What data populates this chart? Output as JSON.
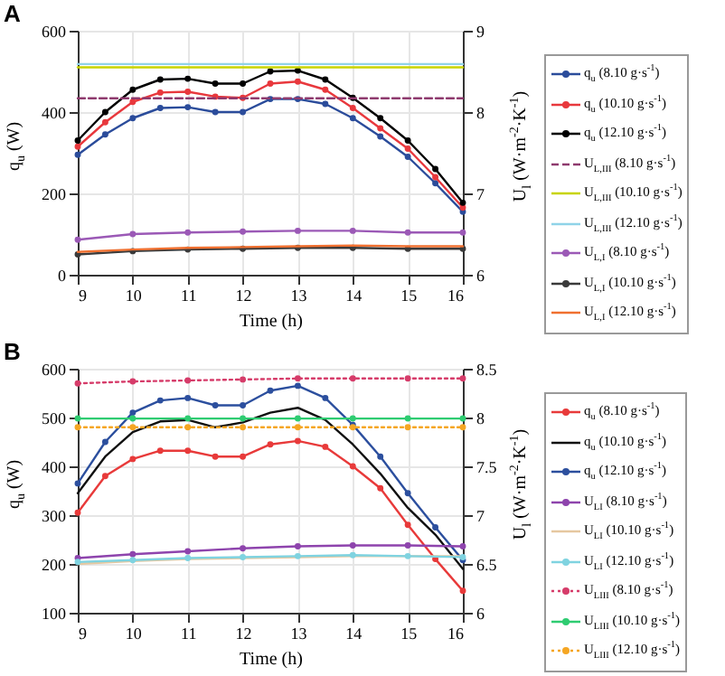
{
  "chart_data": [
    {
      "type": "line",
      "title": "A",
      "xlabel": "Time (h)",
      "ylabel": "q$_{u}$ (W)",
      "y2label": "U$_{l}$ (W·m$^{-2}$·K$^{-1}$)",
      "x": [
        9,
        9.5,
        10,
        10.5,
        11,
        11.5,
        12,
        12.5,
        13,
        13.5,
        14,
        14.5,
        15,
        15.5,
        16
      ],
      "xlim": [
        9,
        16
      ],
      "xticks": [
        9,
        10,
        11,
        12,
        13,
        14,
        15,
        16
      ],
      "ylim": [
        0,
        600
      ],
      "yticks": [
        0,
        200,
        400,
        600
      ],
      "y2lim": [
        6,
        9
      ],
      "y2ticks": [
        6,
        7,
        8,
        9
      ],
      "grid": true,
      "legend": "right",
      "series": [
        {
          "name": "q$_{u}$ (8.10 g·s$^{-1}$)",
          "color": "#2b4c9b",
          "marker": "circle",
          "line_style": "solid",
          "values": [
            295,
            345,
            385,
            410,
            412,
            400,
            400,
            432,
            432,
            420,
            385,
            340,
            290,
            225,
            155
          ]
        },
        {
          "name": "q$_{u}$ (10.10 g·s$^{-1}$)",
          "color": "#e8383d",
          "marker": "circle",
          "line_style": "solid",
          "values": [
            315,
            375,
            425,
            448,
            450,
            438,
            435,
            470,
            475,
            455,
            410,
            360,
            310,
            240,
            165
          ]
        },
        {
          "name": "q$_{u}$ (12.10 g·s$^{-1}$)",
          "color": "#000000",
          "marker": "circle",
          "line_style": "solid",
          "values": [
            330,
            400,
            455,
            480,
            482,
            470,
            470,
            500,
            502,
            480,
            435,
            385,
            330,
            260,
            177
          ]
        },
        {
          "name": "U$_{L,III}$ (8.10 g·s$^{-1}$)",
          "color": "#8e3a6e",
          "marker": "none",
          "line_style": "dashed",
          "axis": "y2",
          "x": [
            9,
            10,
            11,
            12,
            13,
            14,
            15,
            16
          ],
          "values": [
            8.17,
            8.17,
            8.17,
            8.17,
            8.17,
            8.17,
            8.17,
            8.17
          ]
        },
        {
          "name": "U$_{L,III}$ (10.10 g·s$^{-1}$)",
          "color": "#c8d400",
          "marker": "none",
          "line_style": "solid",
          "axis": "y2",
          "x": [
            9,
            10,
            11,
            12,
            13,
            14,
            15,
            16
          ],
          "values": [
            8.55,
            8.55,
            8.55,
            8.55,
            8.55,
            8.55,
            8.55,
            8.55
          ]
        },
        {
          "name": "U$_{L,III}$ (12.10 g·s$^{-1}$)",
          "color": "#8fd3e8",
          "marker": "none",
          "line_style": "solid",
          "axis": "y2",
          "x": [
            9,
            10,
            11,
            12,
            13,
            14,
            15,
            16
          ],
          "values": [
            8.59,
            8.59,
            8.59,
            8.59,
            8.59,
            8.59,
            8.59,
            8.59
          ]
        },
        {
          "name": "U$_{L,I}$ (8.10 g·s$^{-1}$)",
          "color": "#9b59b6",
          "marker": "circle",
          "line_style": "solid",
          "axis": "y2",
          "x": [
            9,
            10,
            11,
            12,
            13,
            14,
            15,
            16
          ],
          "values": [
            6.43,
            6.5,
            6.52,
            6.53,
            6.54,
            6.54,
            6.52,
            6.52
          ]
        },
        {
          "name": "U$_{L,I}$ (10.10 g·s$^{-1}$)",
          "color": "#3a3a3a",
          "marker": "circle",
          "line_style": "solid",
          "axis": "y2",
          "x": [
            9,
            10,
            11,
            12,
            13,
            14,
            15,
            16
          ],
          "values": [
            6.25,
            6.29,
            6.31,
            6.32,
            6.33,
            6.33,
            6.32,
            6.32
          ]
        },
        {
          "name": "U$_{L,I}$ (12.10 g·s$^{-1}$)",
          "color": "#f07030",
          "marker": "none",
          "line_style": "solid",
          "axis": "y2",
          "x": [
            9,
            10,
            11,
            12,
            13,
            14,
            15,
            16
          ],
          "values": [
            6.28,
            6.31,
            6.33,
            6.34,
            6.35,
            6.36,
            6.35,
            6.35
          ]
        }
      ]
    },
    {
      "type": "line",
      "title": "B",
      "xlabel": "Time (h)",
      "ylabel": "q$_{u}$ (W)",
      "y2label": "U$_{l}$ (W·m$^{-2}$·K$^{-1}$)",
      "x": [
        9,
        9.5,
        10,
        10.5,
        11,
        11.5,
        12,
        12.5,
        13,
        13.5,
        14,
        14.5,
        15,
        15.5,
        16
      ],
      "xlim": [
        9,
        16
      ],
      "xticks": [
        9,
        10,
        11,
        12,
        13,
        14,
        15,
        16
      ],
      "ylim": [
        100,
        600
      ],
      "yticks": [
        100,
        200,
        300,
        400,
        500,
        600
      ],
      "y2lim": [
        6,
        8.5
      ],
      "y2ticks": [
        6,
        6.5,
        7,
        7.5,
        8,
        8.5
      ],
      "grid": true,
      "legend": "right",
      "series": [
        {
          "name": "q$_{u}$ (8.10 g·s$^{-1}$)",
          "color": "#e83a3a",
          "marker": "circle",
          "line_style": "solid",
          "values": [
            305,
            380,
            415,
            432,
            432,
            420,
            420,
            445,
            452,
            440,
            400,
            355,
            280,
            210,
            145
          ]
        },
        {
          "name": "q$_{u}$ (10.10 g·s$^{-1}$)",
          "color": "#111111",
          "marker": "none",
          "line_style": "solid",
          "values": [
            345,
            420,
            470,
            492,
            495,
            480,
            490,
            510,
            520,
            495,
            445,
            385,
            315,
            260,
            190
          ]
        },
        {
          "name": "q$_{u}$ (12.10 g·s$^{-1}$)",
          "color": "#2c4f9e",
          "marker": "circle",
          "line_style": "solid",
          "values": [
            365,
            450,
            510,
            535,
            540,
            525,
            525,
            555,
            565,
            540,
            485,
            420,
            345,
            275,
            208
          ]
        },
        {
          "name": "U$_{LI}$ (8.10 g·s$^{-1}$)",
          "color": "#8e44ad",
          "marker": "circle",
          "line_style": "solid",
          "axis": "y2",
          "x": [
            9,
            10,
            11,
            12,
            13,
            14,
            15,
            16
          ],
          "values": [
            6.56,
            6.6,
            6.63,
            6.66,
            6.68,
            6.69,
            6.69,
            6.68
          ]
        },
        {
          "name": "U$_{LI}$ (10.10 g·s$^{-1}$)",
          "color": "#e6c8a0",
          "marker": "none",
          "line_style": "solid",
          "axis": "y2",
          "x": [
            9,
            10,
            11,
            12,
            13,
            14,
            15,
            16
          ],
          "values": [
            6.5,
            6.53,
            6.55,
            6.56,
            6.57,
            6.58,
            6.58,
            6.58
          ]
        },
        {
          "name": "U$_{LI}$ (12.10 g·s$^{-1}$)",
          "color": "#7fd3e0",
          "marker": "circle",
          "line_style": "solid",
          "axis": "y2",
          "x": [
            9,
            10,
            11,
            12,
            13,
            14,
            15,
            16
          ],
          "values": [
            6.52,
            6.54,
            6.56,
            6.57,
            6.58,
            6.59,
            6.58,
            6.57
          ]
        },
        {
          "name": "U$_{LIII}$ (8.10 g·s$^{-1}$)",
          "color": "#d63c6a",
          "marker": "circle",
          "line_style": "dotted",
          "axis": "y2",
          "x": [
            9,
            10,
            11,
            12,
            13,
            14,
            15,
            16
          ],
          "values": [
            8.35,
            8.37,
            8.38,
            8.39,
            8.4,
            8.4,
            8.4,
            8.4
          ]
        },
        {
          "name": "U$_{LIII}$ (10.10 g·s$^{-1}$)",
          "color": "#2ecc71",
          "marker": "circle",
          "line_style": "solid",
          "axis": "y2",
          "x": [
            9,
            10,
            11,
            12,
            13,
            14,
            15,
            16
          ],
          "values": [
            7.99,
            7.99,
            7.99,
            7.99,
            7.99,
            7.99,
            7.99,
            7.99
          ]
        },
        {
          "name": "U$_{LIII}$ (12.10 g·s$^{-1}$)",
          "color": "#f5a623",
          "marker": "circle",
          "line_style": "dotted",
          "axis": "y2",
          "x": [
            9,
            10,
            11,
            12,
            13,
            14,
            15,
            16
          ],
          "values": [
            7.9,
            7.9,
            7.9,
            7.9,
            7.9,
            7.9,
            7.9,
            7.9
          ]
        }
      ]
    }
  ]
}
